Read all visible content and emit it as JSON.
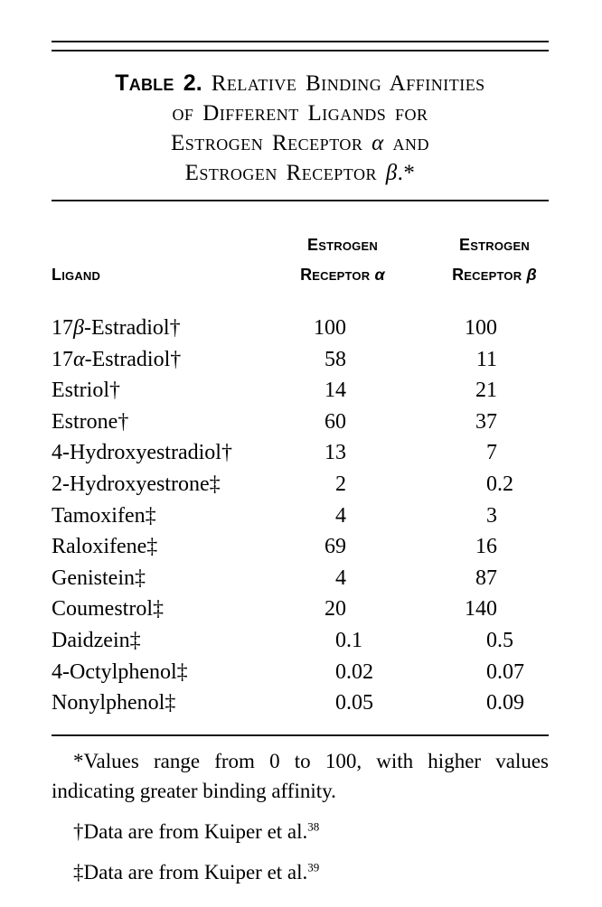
{
  "page": {
    "background": "#ffffff",
    "text_color": "#000000",
    "rule_color": "#141414"
  },
  "title": {
    "lines": [
      [
        {
          "t": "Table 2.",
          "s": "label"
        },
        {
          "t": " Relative Binding Affinities",
          "s": "sc"
        }
      ],
      [
        {
          "t": "of Different Ligands for",
          "s": "sc"
        }
      ],
      [
        {
          "t": "Estrogen Receptor ",
          "s": "sc"
        },
        {
          "t": "α",
          "s": "g"
        },
        {
          "t": " and",
          "s": "sc"
        }
      ],
      [
        {
          "t": "Estrogen Receptor ",
          "s": "sc"
        },
        {
          "t": "β",
          "s": "g"
        },
        {
          "t": ".*",
          "s": "sc"
        }
      ]
    ]
  },
  "header": {
    "ligand": "Ligand",
    "col_alpha": {
      "line1": "Estrogen",
      "line2": "Receptor ",
      "greek": "α"
    },
    "col_beta": {
      "line1": "Estrogen",
      "line2": "Receptor ",
      "greek": "β"
    }
  },
  "table": {
    "rows": [
      {
        "ligand": [
          {
            "t": "17"
          },
          {
            "t": "β",
            "s": "g"
          },
          {
            "t": "-Estradiol†"
          }
        ],
        "alpha": "100",
        "beta": "100"
      },
      {
        "ligand": [
          {
            "t": "17"
          },
          {
            "t": "α",
            "s": "g"
          },
          {
            "t": "-Estradiol†"
          }
        ],
        "alpha": "58",
        "beta": "11"
      },
      {
        "ligand": [
          {
            "t": "Estriol†"
          }
        ],
        "alpha": "14",
        "beta": "21"
      },
      {
        "ligand": [
          {
            "t": "Estrone†"
          }
        ],
        "alpha": "60",
        "beta": "37"
      },
      {
        "ligand": [
          {
            "t": "4-Hydroxyestradiol†"
          }
        ],
        "alpha": "13",
        "beta": "7"
      },
      {
        "ligand": [
          {
            "t": "2-Hydroxyestrone‡"
          }
        ],
        "alpha": "2",
        "beta": "0.2"
      },
      {
        "ligand": [
          {
            "t": "Tamoxifen‡"
          }
        ],
        "alpha": "4",
        "beta": "3"
      },
      {
        "ligand": [
          {
            "t": "Raloxifene‡"
          }
        ],
        "alpha": "69",
        "beta": "16"
      },
      {
        "ligand": [
          {
            "t": "Genistein‡"
          }
        ],
        "alpha": "4",
        "beta": "87"
      },
      {
        "ligand": [
          {
            "t": "Coumestrol‡"
          }
        ],
        "alpha": "20",
        "beta": "140"
      },
      {
        "ligand": [
          {
            "t": "Daidzein‡"
          }
        ],
        "alpha": "0.1",
        "beta": "0.5"
      },
      {
        "ligand": [
          {
            "t": "4-Octylphenol‡"
          }
        ],
        "alpha": "0.02",
        "beta": "0.07"
      },
      {
        "ligand": [
          {
            "t": "Nonylphenol‡"
          }
        ],
        "alpha": "0.05",
        "beta": "0.09"
      }
    ]
  },
  "footnotes": [
    {
      "marker": "*",
      "text": "Values range from 0 to 100, with higher values indicating greater binding affinity.",
      "sup": ""
    },
    {
      "marker": "†",
      "text": "Data are from Kuiper et al.",
      "sup": "38"
    },
    {
      "marker": "‡",
      "text": "Data are from Kuiper et al.",
      "sup": "39"
    }
  ]
}
